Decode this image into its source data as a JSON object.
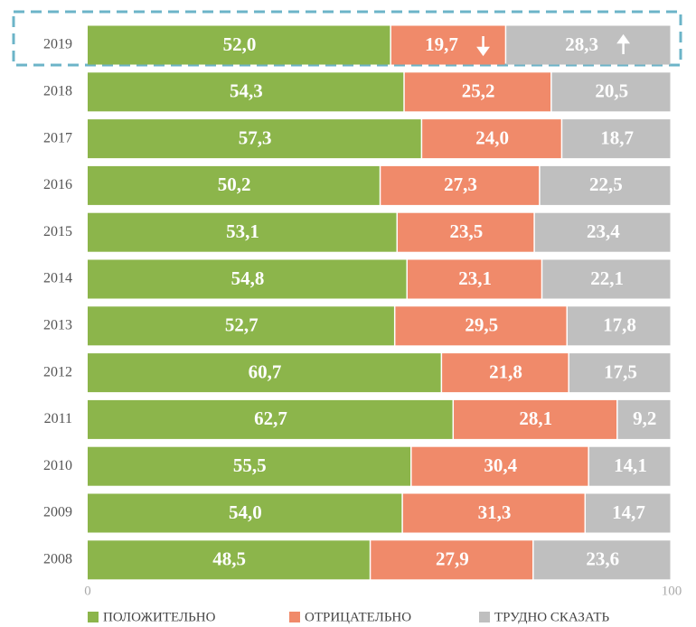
{
  "chart_data": {
    "type": "stacked-bar-horizontal",
    "categories": [
      "2019",
      "2018",
      "2017",
      "2016",
      "2015",
      "2014",
      "2013",
      "2012",
      "2011",
      "2010",
      "2009",
      "2008"
    ],
    "series": [
      {
        "name": "ПОЛОЖИТЕЛЬНО",
        "color": "#8cb54b",
        "values": [
          52.0,
          54.3,
          57.3,
          50.2,
          53.1,
          54.8,
          52.7,
          60.7,
          62.7,
          55.5,
          54.0,
          48.5
        ],
        "value_labels": [
          "52,0",
          "54,3",
          "57,3",
          "50,2",
          "53,1",
          "54,8",
          "52,7",
          "60,7",
          "62,7",
          "55,5",
          "54,0",
          "48,5"
        ]
      },
      {
        "name": "ОТРИЦАТЕЛЬНО",
        "color": "#f08a6a",
        "values": [
          19.7,
          25.2,
          24.0,
          27.3,
          23.5,
          23.1,
          29.5,
          21.8,
          28.1,
          30.4,
          31.3,
          27.9
        ],
        "value_labels": [
          "19,7",
          "25,2",
          "24,0",
          "27,3",
          "23,5",
          "23,1",
          "29,5",
          "21,8",
          "28,1",
          "30,4",
          "31,3",
          "27,9"
        ]
      },
      {
        "name": "ТРУДНО СКАЗАТЬ",
        "color": "#bfbfbf",
        "values": [
          28.3,
          20.5,
          18.7,
          22.5,
          23.4,
          22.1,
          17.8,
          17.5,
          9.2,
          14.1,
          14.7,
          23.6
        ],
        "value_labels": [
          "28,3",
          "20,5",
          "18,7",
          "22,5",
          "23,4",
          "22,1",
          "17,8",
          "17,5",
          "9,2",
          "14,1",
          "14,7",
          "23,6"
        ]
      }
    ],
    "xlim": [
      0,
      100
    ],
    "xticks": [
      0,
      100
    ],
    "legend": "bottom"
  }
}
